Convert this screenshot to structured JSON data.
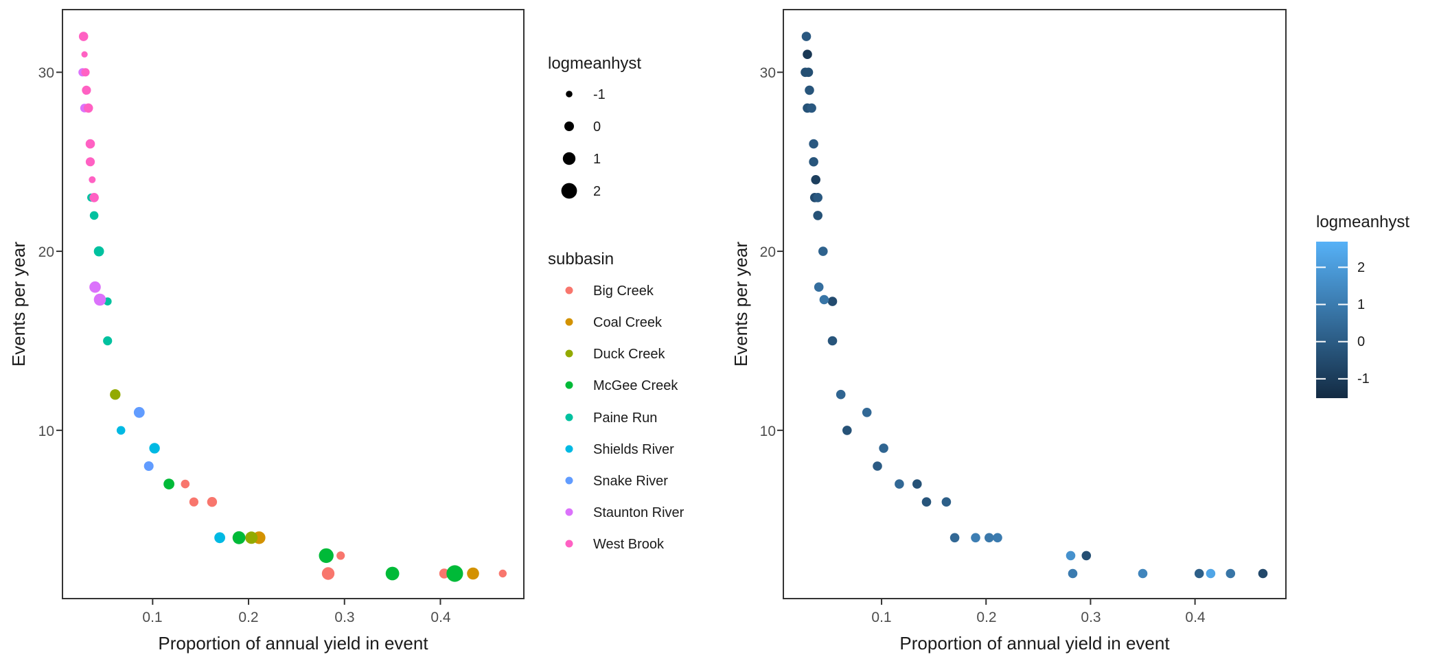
{
  "figure": {
    "background": "#ffffff",
    "panel_border_color": "#333333",
    "tick_text_color": "#4d4d4d",
    "x_axis_label": "Proportion of annual yield in event",
    "y_axis_label": "Events per year",
    "x_tick_labels": [
      "0.1",
      "0.2",
      "0.3",
      "0.4"
    ],
    "y_tick_labels": [
      "30",
      "20",
      "10"
    ]
  },
  "size_legend": {
    "title": "logmeanhyst",
    "entries": [
      {
        "label": "-1",
        "value": -1
      },
      {
        "label": "0",
        "value": 0
      },
      {
        "label": "1",
        "value": 1
      },
      {
        "label": "2",
        "value": 2
      }
    ],
    "dot_color": "#000000"
  },
  "subbasin_legend": {
    "title": "subbasin"
  },
  "subbasins": [
    {
      "name": "Big Creek",
      "color": "#F8766D"
    },
    {
      "name": "Coal Creek",
      "color": "#D39200"
    },
    {
      "name": "Duck Creek",
      "color": "#93AA00"
    },
    {
      "name": "McGee Creek",
      "color": "#00BA38"
    },
    {
      "name": "Paine Run",
      "color": "#00C19F"
    },
    {
      "name": "Shields River",
      "color": "#00B9E3"
    },
    {
      "name": "Snake River",
      "color": "#619CFF"
    },
    {
      "name": "Staunton River",
      "color": "#DB72FB"
    },
    {
      "name": "West Brook",
      "color": "#FF61C3"
    }
  ],
  "colorbar_legend": {
    "title": "logmeanhyst",
    "tick_labels": [
      "2",
      "1",
      "0",
      "-1"
    ],
    "tick_values": [
      2,
      1,
      0,
      -1
    ],
    "low_color": "#132B43",
    "high_color": "#56B1F7",
    "domain": [
      -1.52,
      2.69
    ]
  },
  "chart_data": {
    "type": "scatter",
    "title": "",
    "xlabel": "Proportion of annual yield in event",
    "ylabel": "Events per year",
    "xlim": [
      0.006,
      0.487
    ],
    "ylim": [
      0.6,
      33.5
    ],
    "x_tick_values": [
      0.1,
      0.2,
      0.3,
      0.4
    ],
    "y_tick_values": [
      30,
      20,
      10
    ],
    "grid": "off",
    "point_fields": [
      "proportion_of_annual_yield",
      "events_per_year",
      "logmeanhyst"
    ],
    "series": [
      {
        "name": "Big Creek",
        "color": "#F8766D",
        "points": [
          [
            0.134,
            7,
            -0.3
          ],
          [
            0.143,
            6,
            -0.2
          ],
          [
            0.162,
            6,
            0.1
          ],
          [
            0.296,
            3,
            -0.4
          ],
          [
            0.283,
            2,
            1.0
          ],
          [
            0.404,
            2,
            0.1
          ],
          [
            0.465,
            2,
            -0.6
          ]
        ]
      },
      {
        "name": "Coal Creek",
        "color": "#D39200",
        "points": [
          [
            0.211,
            4,
            1.0
          ],
          [
            0.434,
            2,
            0.8
          ]
        ]
      },
      {
        "name": "Duck Creek",
        "color": "#93AA00",
        "points": [
          [
            0.061,
            12,
            0.3
          ],
          [
            0.203,
            4,
            0.9
          ]
        ]
      },
      {
        "name": "McGee Creek",
        "color": "#00BA38",
        "points": [
          [
            0.117,
            7,
            0.4
          ],
          [
            0.19,
            4,
            1.1
          ],
          [
            0.281,
            3,
            1.7
          ],
          [
            0.35,
            2,
            1.3
          ],
          [
            0.415,
            2,
            2.3
          ]
        ]
      },
      {
        "name": "Paine Run",
        "color": "#00C19F",
        "points": [
          [
            0.036,
            23,
            -0.5
          ],
          [
            0.039,
            22,
            -0.3
          ],
          [
            0.044,
            20,
            0.2
          ],
          [
            0.053,
            17.2,
            -0.5
          ],
          [
            0.053,
            15,
            -0.2
          ]
        ]
      },
      {
        "name": "Shields River",
        "color": "#00B9E3",
        "points": [
          [
            0.067,
            10,
            -0.3
          ],
          [
            0.102,
            9,
            0.3
          ],
          [
            0.17,
            4,
            0.4
          ]
        ]
      },
      {
        "name": "Snake River",
        "color": "#619CFF",
        "points": [
          [
            0.086,
            11,
            0.4
          ],
          [
            0.096,
            8,
            0.0
          ]
        ]
      },
      {
        "name": "Staunton River",
        "color": "#DB72FB",
        "points": [
          [
            0.027,
            30,
            -0.4
          ],
          [
            0.029,
            28,
            -0.3
          ],
          [
            0.04,
            18,
            0.6
          ],
          [
            0.045,
            17.3,
            0.8
          ]
        ]
      },
      {
        "name": "West Brook",
        "color": "#FF61C3",
        "points": [
          [
            0.028,
            32,
            -0.1
          ],
          [
            0.029,
            31,
            -1.1
          ],
          [
            0.03,
            30,
            -0.4
          ],
          [
            0.031,
            29,
            -0.2
          ],
          [
            0.033,
            28,
            -0.1
          ],
          [
            0.035,
            26,
            -0.1
          ],
          [
            0.035,
            25,
            -0.2
          ],
          [
            0.037,
            24,
            -0.9
          ],
          [
            0.039,
            23,
            -0.1
          ]
        ]
      }
    ],
    "panels": [
      {
        "id": "left",
        "size_by": "logmeanhyst",
        "color_by": "subbasin"
      },
      {
        "id": "right",
        "size_by": null,
        "color_by": "logmeanhyst"
      }
    ]
  }
}
